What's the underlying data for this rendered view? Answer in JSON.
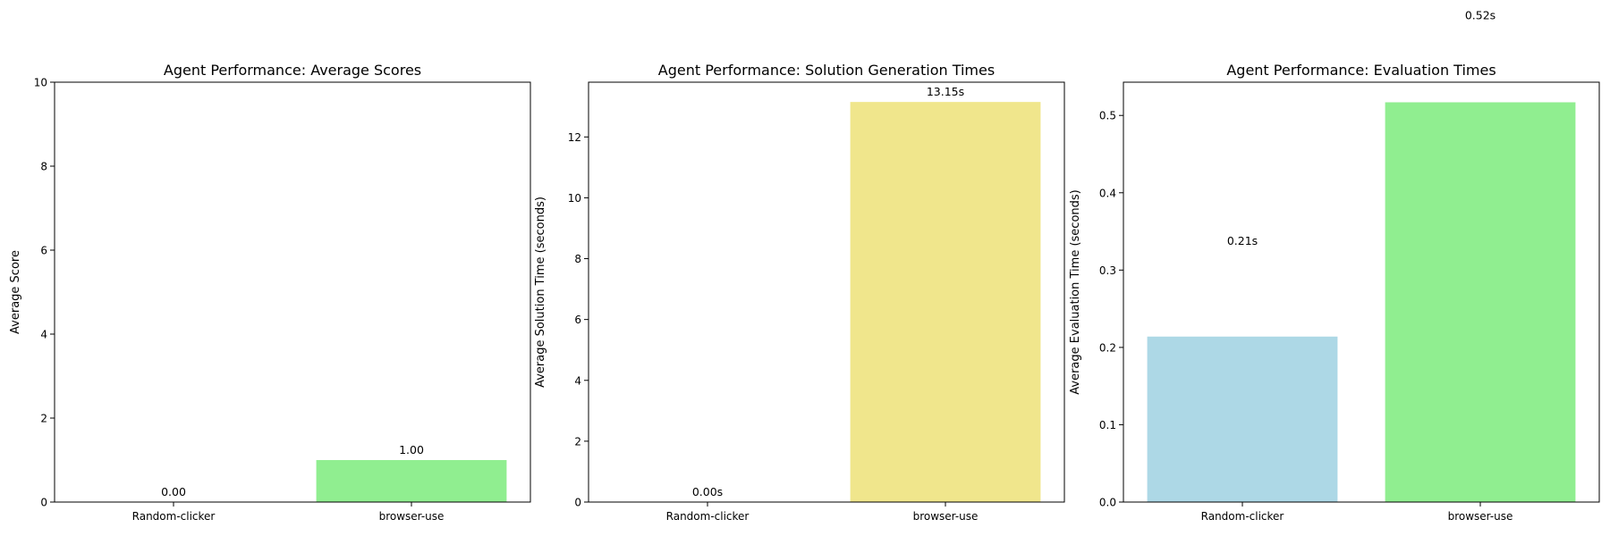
{
  "chart_data": [
    {
      "type": "bar",
      "title": "Agent Performance: Average Scores",
      "xlabel": "",
      "ylabel": "Average Score",
      "categories": [
        "Random-clicker",
        "browser-use"
      ],
      "values": [
        0.0,
        1.0
      ],
      "data_labels": [
        "0.00",
        "1.00"
      ],
      "colors": [
        "#add8e6",
        "#90ee90"
      ],
      "ylim": [
        0,
        10
      ],
      "yticks": [
        0,
        2,
        4,
        6,
        8,
        10
      ],
      "ytick_labels": [
        "0",
        "2",
        "4",
        "6",
        "8",
        "10"
      ],
      "grid": false
    },
    {
      "type": "bar",
      "title": "Agent Performance: Solution Generation Times",
      "xlabel": "",
      "ylabel": "Average Solution Time (seconds)",
      "categories": [
        "Random-clicker",
        "browser-use"
      ],
      "values": [
        0.0,
        13.15
      ],
      "data_labels": [
        "0.00s",
        "13.15s"
      ],
      "colors": [
        "#add8e6",
        "#f0e68c"
      ],
      "ylim": [
        0,
        13.8
      ],
      "yticks": [
        0,
        2,
        4,
        6,
        8,
        10,
        12
      ],
      "ytick_labels": [
        "0",
        "2",
        "4",
        "6",
        "8",
        "10",
        "12"
      ],
      "grid": false
    },
    {
      "type": "bar",
      "title": "Agent Performance: Evaluation Times",
      "xlabel": "",
      "ylabel": "Average Evaluation Time (seconds)",
      "categories": [
        "Random-clicker",
        "browser-use"
      ],
      "values": [
        0.214,
        0.517
      ],
      "data_labels": [
        "0.21s",
        "0.52s"
      ],
      "colors": [
        "#add8e6",
        "#90ee90"
      ],
      "ylim": [
        0,
        0.543
      ],
      "yticks": [
        0.0,
        0.1,
        0.2,
        0.3,
        0.4,
        0.5
      ],
      "ytick_labels": [
        "0.0",
        "0.1",
        "0.2",
        "0.3",
        "0.4",
        "0.5"
      ],
      "grid": false
    }
  ]
}
